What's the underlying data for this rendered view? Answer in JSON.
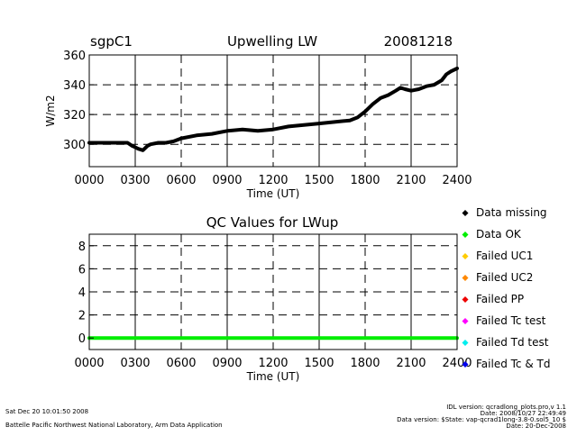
{
  "header": {
    "site": "sgpC1",
    "date": "20081218"
  },
  "chart_data": [
    {
      "type": "line",
      "title": "Upwelling LW",
      "xlabel": "Time (UT)",
      "ylabel": "W/m2",
      "xlim": [
        0,
        24
      ],
      "ylim": [
        285,
        360
      ],
      "x_ticks": [
        0,
        3,
        6,
        9,
        12,
        15,
        18,
        21,
        24
      ],
      "x_tick_labels": [
        "0000",
        "0300",
        "0600",
        "0900",
        "1200",
        "1500",
        "1800",
        "2100",
        "2400"
      ],
      "y_ticks": [
        300,
        320,
        340,
        360
      ],
      "y_tick_labels": [
        "300",
        "320",
        "340",
        "360"
      ],
      "grid": true,
      "color": "#000000",
      "series": [
        {
          "x": [
            0,
            1,
            2,
            2.5,
            2.8,
            3.0,
            3.2,
            3.5,
            3.8,
            4.0,
            4.5,
            5.0,
            5.5,
            6.0,
            7.0,
            8.0,
            9.0,
            10.0,
            11.0,
            12.0,
            13.0,
            14.0,
            15.0,
            16.0,
            17.0,
            17.5,
            18.0,
            18.5,
            19.0,
            19.5,
            20.0,
            20.3,
            20.6,
            21.0,
            21.5,
            22.0,
            22.5,
            23.0,
            23.3,
            23.6,
            24.0
          ],
          "y": [
            301,
            301,
            301,
            301,
            299,
            298,
            297,
            296,
            299,
            300,
            301,
            301,
            302,
            304,
            306,
            307,
            309,
            310,
            309,
            310,
            312,
            313,
            314,
            315,
            316,
            318,
            322,
            327,
            331,
            333,
            336,
            338,
            337,
            336,
            337,
            339,
            340,
            343,
            347,
            349,
            351
          ]
        }
      ]
    },
    {
      "type": "line",
      "title": "QC Values for LWup",
      "xlabel": "Time (UT)",
      "ylabel": "",
      "xlim": [
        0,
        24
      ],
      "ylim": [
        -1,
        9
      ],
      "x_ticks": [
        0,
        3,
        6,
        9,
        12,
        15,
        18,
        21,
        24
      ],
      "x_tick_labels": [
        "0000",
        "0300",
        "0600",
        "0900",
        "1200",
        "1500",
        "1800",
        "2100",
        "2400"
      ],
      "y_ticks": [
        0,
        2,
        4,
        6,
        8
      ],
      "y_tick_labels": [
        "0",
        "2",
        "4",
        "6",
        "8"
      ],
      "grid": true,
      "legend_position": "right",
      "series": [
        {
          "x": [
            0,
            24
          ],
          "y": [
            0,
            0
          ],
          "color": "#00ee00"
        }
      ],
      "legend": [
        {
          "label": "Data missing",
          "color": "#000000"
        },
        {
          "label": "Data OK",
          "color": "#00ee00"
        },
        {
          "label": "Failed UC1",
          "color": "#ffcc00"
        },
        {
          "label": "Failed UC2",
          "color": "#ff8800"
        },
        {
          "label": "Failed PP",
          "color": "#ee0000"
        },
        {
          "label": "Failed Tc test",
          "color": "#ff00ff"
        },
        {
          "label": "Failed Td test",
          "color": "#00eeee"
        },
        {
          "label": "Failed Tc & Td",
          "color": "#0000ee"
        }
      ]
    }
  ],
  "footer": {
    "timestamp": "Sat Dec 20 10:01:50 2008",
    "lab": "Battelle Pacific Northwest National Laboratory, Arm Data Application",
    "idl_version": "IDL version: qcradlong_plots.pro,v 1.1",
    "idl_date": "Date: 2008/10/27 22:49:49",
    "data_version": "Data version: $State: vap-qcrad1long-3.8-0.sol5_10 $",
    "data_date": "Date: 20-Dec-2008"
  }
}
